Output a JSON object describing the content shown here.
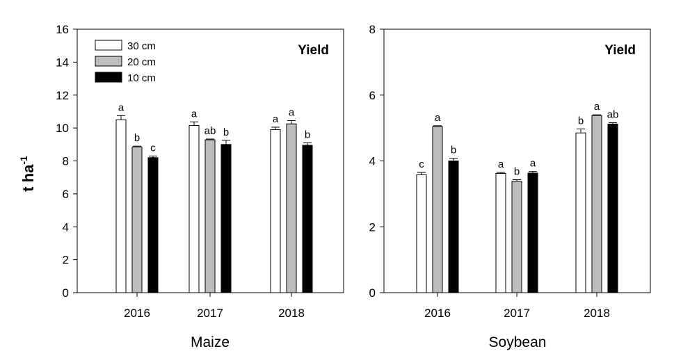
{
  "chart_data": [
    {
      "type": "bar",
      "title": "Yield",
      "xlabel": "Maize",
      "ylabel": "t ha",
      "ylabel_superscript": "-1",
      "ylim": [
        0,
        16
      ],
      "yticks": [
        0,
        2,
        4,
        6,
        8,
        10,
        12,
        14,
        16
      ],
      "categories": [
        "2016",
        "2017",
        "2018"
      ],
      "legend_position": "top-left",
      "series": [
        {
          "name": "30 cm",
          "color": "#ffffff",
          "values": [
            10.5,
            10.15,
            9.9
          ],
          "errors": [
            0.25,
            0.22,
            0.15
          ],
          "letters": [
            "a",
            "a",
            "a"
          ]
        },
        {
          "name": "20 cm",
          "color": "#bdbdbd",
          "values": [
            8.85,
            9.28,
            10.25
          ],
          "errors": [
            0.05,
            0.05,
            0.2
          ],
          "letters": [
            "b",
            "ab",
            "a"
          ]
        },
        {
          "name": "10 cm",
          "color": "#000000",
          "values": [
            8.2,
            9.0,
            8.95
          ],
          "errors": [
            0.1,
            0.25,
            0.15
          ],
          "letters": [
            "c",
            "b",
            "b"
          ]
        }
      ]
    },
    {
      "type": "bar",
      "title": "Yield",
      "xlabel": "Soybean",
      "ylabel": "",
      "ylim": [
        0,
        8
      ],
      "yticks": [
        0,
        2,
        4,
        6,
        8
      ],
      "categories": [
        "2016",
        "2017",
        "2018"
      ],
      "series": [
        {
          "name": "30 cm",
          "color": "#ffffff",
          "values": [
            3.58,
            3.62,
            4.85
          ],
          "errors": [
            0.07,
            0.03,
            0.12
          ],
          "letters": [
            "c",
            "a",
            "b"
          ]
        },
        {
          "name": "20 cm",
          "color": "#bdbdbd",
          "values": [
            5.05,
            3.38,
            5.38
          ],
          "errors": [
            0.02,
            0.05,
            0.02
          ],
          "letters": [
            "a",
            "b",
            "a"
          ]
        },
        {
          "name": "10 cm",
          "color": "#000000",
          "values": [
            4.0,
            3.63,
            5.12
          ],
          "errors": [
            0.08,
            0.05,
            0.04
          ],
          "letters": [
            "b",
            "a",
            "ab"
          ]
        }
      ]
    }
  ]
}
